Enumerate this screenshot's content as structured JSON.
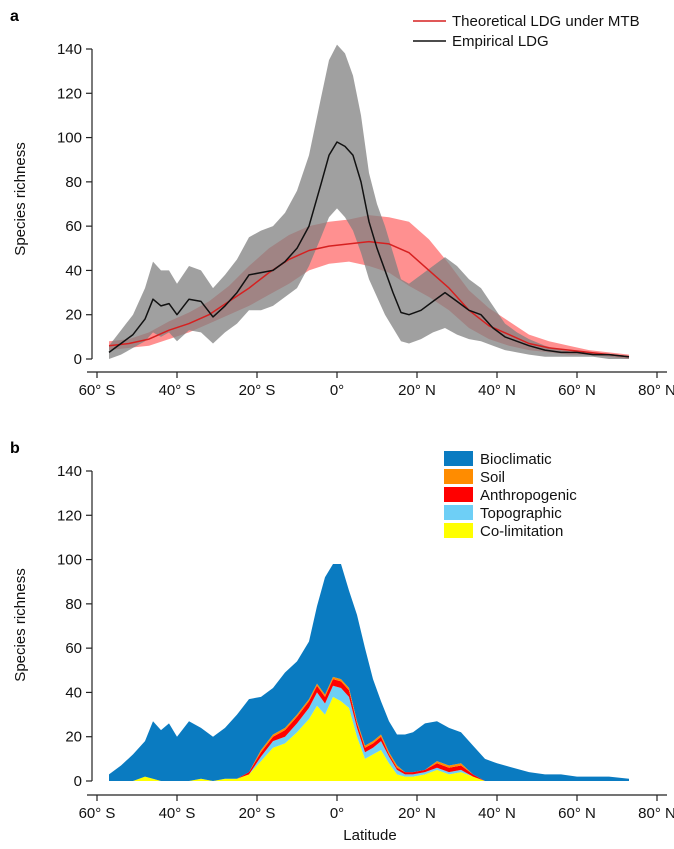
{
  "chart_data": [
    {
      "type": "line",
      "panel_label": "a",
      "xlabel": "",
      "ylabel": "Species richness",
      "ylim": [
        0,
        140
      ],
      "yticks": [
        0,
        20,
        40,
        60,
        80,
        100,
        120,
        140
      ],
      "xlim": [
        -60,
        80
      ],
      "xticks": [
        -60,
        -40,
        -20,
        0,
        20,
        40,
        60,
        80
      ],
      "xtick_labels": [
        "60° S",
        "40° S",
        "20° S",
        "0°",
        "20° N",
        "40° N",
        "60° N",
        "80° N"
      ],
      "legend_position": "top-right",
      "series": [
        {
          "name": "Theoretical LDG under MTB",
          "color": "#d62020",
          "band_color": "#ff6b6b",
          "x": [
            -57,
            -52,
            -47,
            -42,
            -37,
            -32,
            -27,
            -22,
            -17,
            -12,
            -7,
            -2,
            3,
            8,
            13,
            18,
            23,
            28,
            33,
            38,
            43,
            48,
            53,
            58,
            63,
            68,
            73
          ],
          "mean": [
            6,
            7,
            9,
            13,
            16,
            20,
            26,
            32,
            39,
            45,
            49,
            51,
            52,
            53,
            52,
            48,
            40,
            32,
            22,
            15,
            11,
            7,
            5,
            4,
            3,
            2,
            1
          ],
          "lower": [
            4,
            5,
            6,
            9,
            12,
            16,
            20,
            24,
            29,
            34,
            40,
            43,
            44,
            42,
            39,
            33,
            28,
            22,
            14,
            9,
            6,
            4,
            3,
            2,
            2,
            1,
            0
          ],
          "upper": [
            8,
            9,
            12,
            17,
            21,
            26,
            33,
            42,
            50,
            56,
            60,
            62,
            63,
            65,
            64,
            62,
            54,
            43,
            31,
            23,
            17,
            11,
            8,
            6,
            4,
            3,
            2
          ]
        },
        {
          "name": "Empirical LDG",
          "color": "#111111",
          "band_color": "#808080",
          "x": [
            -57,
            -54,
            -51,
            -48,
            -46,
            -44,
            -42,
            -40,
            -37,
            -34,
            -31,
            -28,
            -25,
            -22,
            -19,
            -16,
            -13,
            -10,
            -7,
            -4,
            -2,
            0,
            2,
            4,
            6,
            8,
            10,
            12,
            14,
            16,
            18,
            21,
            24,
            27,
            30,
            33,
            36,
            39,
            42,
            45,
            48,
            52,
            56,
            60,
            64,
            68,
            73
          ],
          "mean": [
            3,
            7,
            11,
            18,
            27,
            24,
            25,
            20,
            27,
            26,
            19,
            24,
            30,
            38,
            39,
            40,
            44,
            50,
            60,
            79,
            92,
            98,
            96,
            92,
            80,
            62,
            50,
            40,
            30,
            21,
            20,
            22,
            26,
            30,
            26,
            22,
            20,
            14,
            10,
            8,
            6,
            4,
            3,
            3,
            2,
            2,
            1
          ],
          "lower": [
            0,
            2,
            5,
            8,
            12,
            10,
            12,
            8,
            13,
            12,
            7,
            12,
            16,
            22,
            22,
            24,
            28,
            32,
            42,
            55,
            64,
            68,
            64,
            58,
            48,
            36,
            28,
            20,
            14,
            8,
            7,
            9,
            12,
            14,
            11,
            9,
            8,
            6,
            4,
            3,
            2,
            1,
            1,
            1,
            1,
            0,
            0
          ],
          "upper": [
            6,
            13,
            20,
            32,
            44,
            40,
            40,
            34,
            42,
            40,
            32,
            38,
            45,
            55,
            58,
            60,
            66,
            76,
            92,
            118,
            135,
            142,
            138,
            128,
            110,
            84,
            70,
            60,
            48,
            36,
            34,
            38,
            42,
            46,
            42,
            36,
            32,
            24,
            16,
            12,
            9,
            6,
            4,
            3,
            3,
            2,
            1
          ]
        }
      ]
    },
    {
      "type": "area",
      "stacked": true,
      "panel_label": "b",
      "xlabel": "Latitude",
      "ylabel": "Species richness",
      "ylim": [
        0,
        140
      ],
      "yticks": [
        0,
        20,
        40,
        60,
        80,
        100,
        120,
        140
      ],
      "xlim": [
        -60,
        80
      ],
      "xticks": [
        -60,
        -40,
        -20,
        0,
        20,
        40,
        60,
        80
      ],
      "xtick_labels": [
        "60° S",
        "40° S",
        "20° S",
        "0°",
        "20° N",
        "40° N",
        "60° N",
        "80° N"
      ],
      "legend_position": "top-right",
      "x": [
        -57,
        -54,
        -51,
        -48,
        -46,
        -44,
        -42,
        -40,
        -37,
        -34,
        -31,
        -28,
        -25,
        -22,
        -19,
        -16,
        -13,
        -10,
        -7,
        -5,
        -3,
        -1,
        1,
        3,
        5,
        7,
        9,
        11,
        13,
        15,
        17,
        19,
        22,
        25,
        28,
        31,
        34,
        37,
        40,
        44,
        48,
        52,
        56,
        60,
        64,
        68,
        73
      ],
      "series": [
        {
          "name": "Co-limitation",
          "color": "#ffff00",
          "values": [
            0,
            0,
            0,
            2,
            1,
            0,
            0,
            0,
            0,
            1,
            0,
            1,
            1,
            3,
            9,
            15,
            17,
            22,
            28,
            34,
            30,
            38,
            36,
            33,
            20,
            10,
            12,
            14,
            8,
            3,
            2,
            2,
            3,
            5,
            3,
            4,
            2,
            0,
            0,
            0,
            0,
            0,
            0,
            0,
            0,
            0,
            0
          ]
        },
        {
          "name": "Topographic",
          "color": "#6ecff6",
          "values": [
            0,
            0,
            0,
            0,
            0,
            0,
            0,
            0,
            0,
            0,
            0,
            0,
            0,
            0,
            2,
            3,
            3,
            4,
            5,
            6,
            5,
            5,
            6,
            5,
            4,
            3,
            3,
            4,
            3,
            2,
            1,
            1,
            1,
            1,
            1,
            1,
            0,
            0,
            0,
            0,
            0,
            0,
            0,
            0,
            0,
            0,
            0
          ]
        },
        {
          "name": "Anthropogenic",
          "color": "#ff0000",
          "values": [
            0,
            0,
            0,
            0,
            0,
            0,
            0,
            0,
            0,
            0,
            0,
            0,
            0,
            1,
            2,
            2,
            3,
            3,
            3,
            3,
            3,
            3,
            3,
            3,
            2,
            2,
            2,
            2,
            1,
            1,
            1,
            1,
            1,
            2,
            2,
            2,
            1,
            0,
            0,
            0,
            0,
            0,
            0,
            0,
            0,
            0,
            0
          ]
        },
        {
          "name": "Soil",
          "color": "#ff8c00",
          "values": [
            0,
            0,
            0,
            0,
            0,
            0,
            0,
            0,
            0,
            0,
            0,
            0,
            0,
            0,
            1,
            1,
            1,
            1,
            1,
            1,
            1,
            1,
            1,
            1,
            1,
            1,
            1,
            1,
            1,
            1,
            0,
            0,
            0,
            1,
            1,
            1,
            0,
            0,
            0,
            0,
            0,
            0,
            0,
            0,
            0,
            0,
            0
          ]
        },
        {
          "name": "Bioclimatic",
          "color": "#0a7bc1",
          "values": [
            3,
            7,
            12,
            16,
            26,
            23,
            26,
            20,
            27,
            23,
            20,
            23,
            29,
            33,
            24,
            21,
            25,
            24,
            26,
            35,
            53,
            51,
            52,
            44,
            48,
            44,
            28,
            15,
            14,
            14,
            17,
            18,
            21,
            18,
            17,
            14,
            13,
            10,
            8,
            6,
            4,
            3,
            3,
            2,
            2,
            2,
            1
          ]
        }
      ]
    }
  ]
}
